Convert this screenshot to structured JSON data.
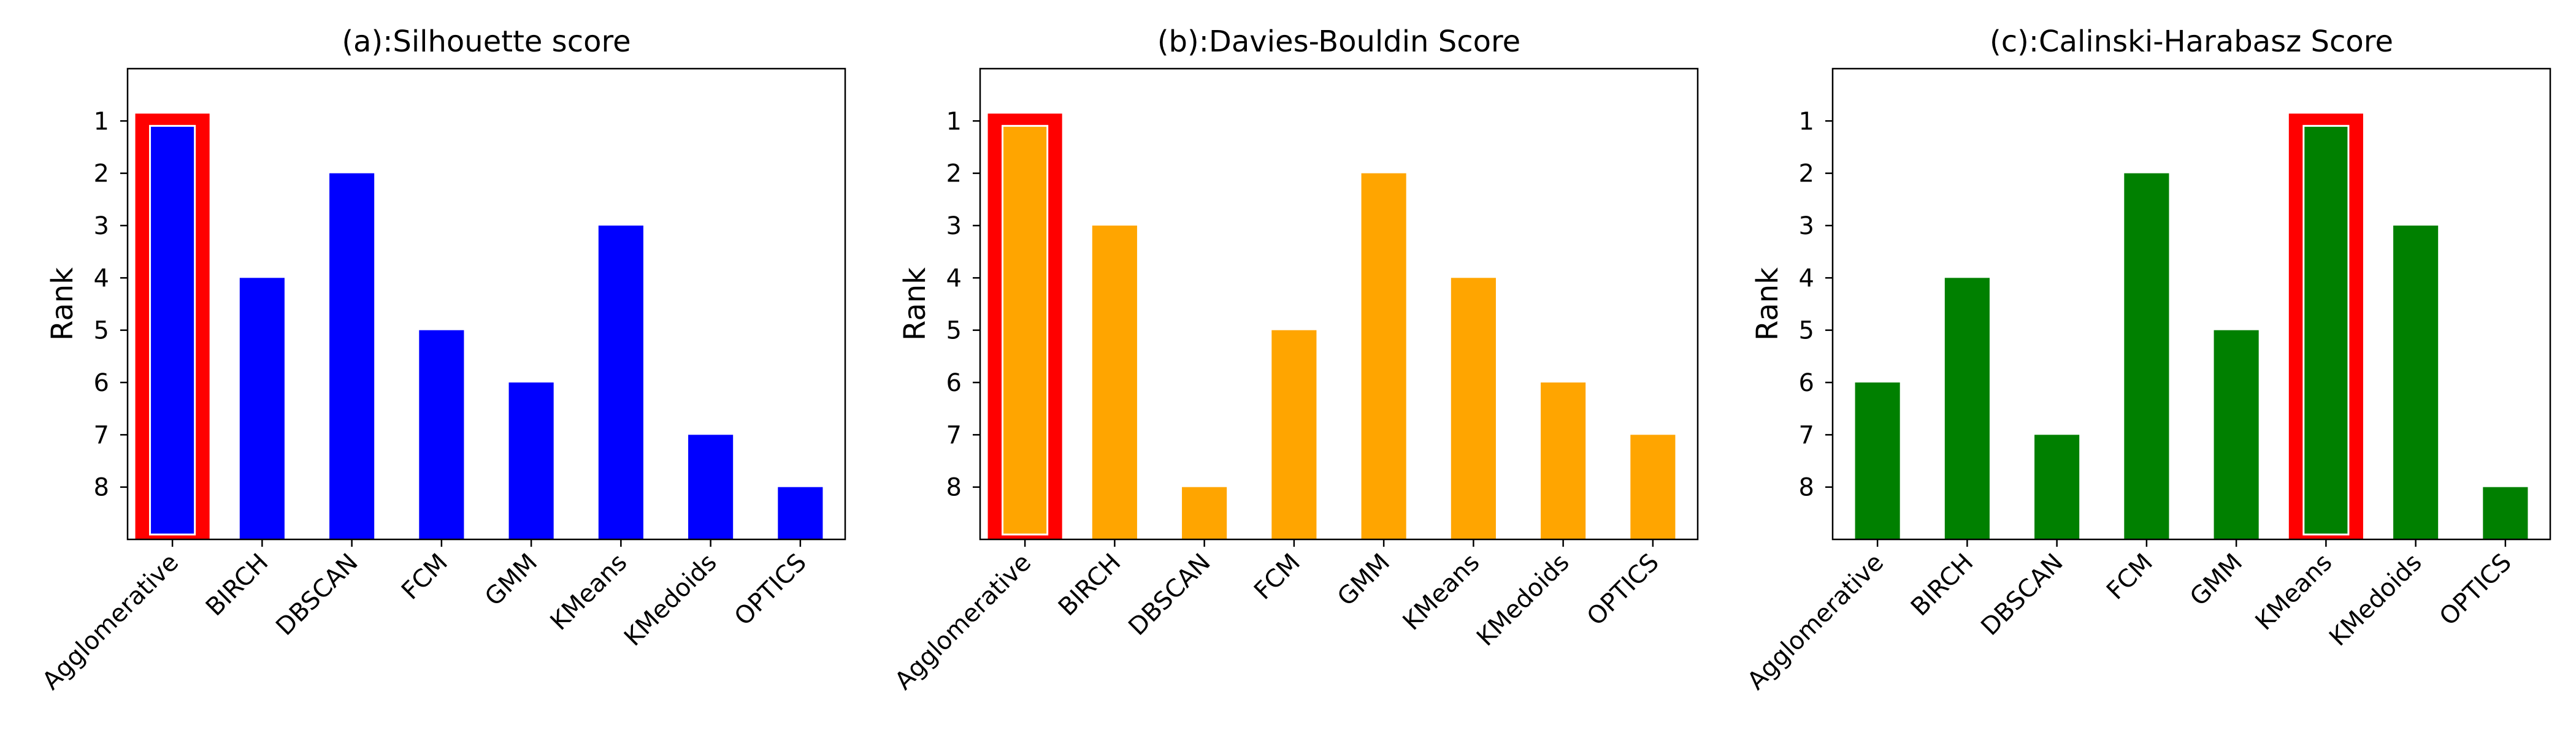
{
  "chart_data": [
    {
      "type": "bar",
      "title": "(a):Silhouette score",
      "ylabel": "Rank",
      "categories": [
        "Agglomerative",
        "BIRCH",
        "DBSCAN",
        "FCM",
        "GMM",
        "KMeans",
        "KMedoids",
        "OPTICS"
      ],
      "values": [
        1,
        4,
        2,
        5,
        6,
        3,
        7,
        8
      ],
      "y_ticks": [
        1,
        2,
        3,
        4,
        5,
        6,
        7,
        8
      ],
      "y_axis": "inverted",
      "bar_color": "#0000ff",
      "highlight_category": "Agglomerative",
      "highlight_color": "#ff0000",
      "grid": false
    },
    {
      "type": "bar",
      "title": "(b):Davies-Bouldin Score",
      "ylabel": "Rank",
      "categories": [
        "Agglomerative",
        "BIRCH",
        "DBSCAN",
        "FCM",
        "GMM",
        "KMeans",
        "KMedoids",
        "OPTICS"
      ],
      "values": [
        1,
        3,
        8,
        5,
        2,
        4,
        6,
        7
      ],
      "y_ticks": [
        1,
        2,
        3,
        4,
        5,
        6,
        7,
        8
      ],
      "y_axis": "inverted",
      "bar_color": "#ffa500",
      "highlight_category": "Agglomerative",
      "highlight_color": "#ff0000",
      "grid": false
    },
    {
      "type": "bar",
      "title": "(c):Calinski-Harabasz Score",
      "ylabel": "Rank",
      "categories": [
        "Agglomerative",
        "BIRCH",
        "DBSCAN",
        "FCM",
        "GMM",
        "KMeans",
        "KMedoids",
        "OPTICS"
      ],
      "values": [
        6,
        4,
        7,
        2,
        5,
        1,
        3,
        8
      ],
      "y_ticks": [
        1,
        2,
        3,
        4,
        5,
        6,
        7,
        8
      ],
      "y_axis": "inverted",
      "bar_color": "#008000",
      "highlight_category": "KMeans",
      "highlight_color": "#ff0000",
      "grid": false
    }
  ]
}
